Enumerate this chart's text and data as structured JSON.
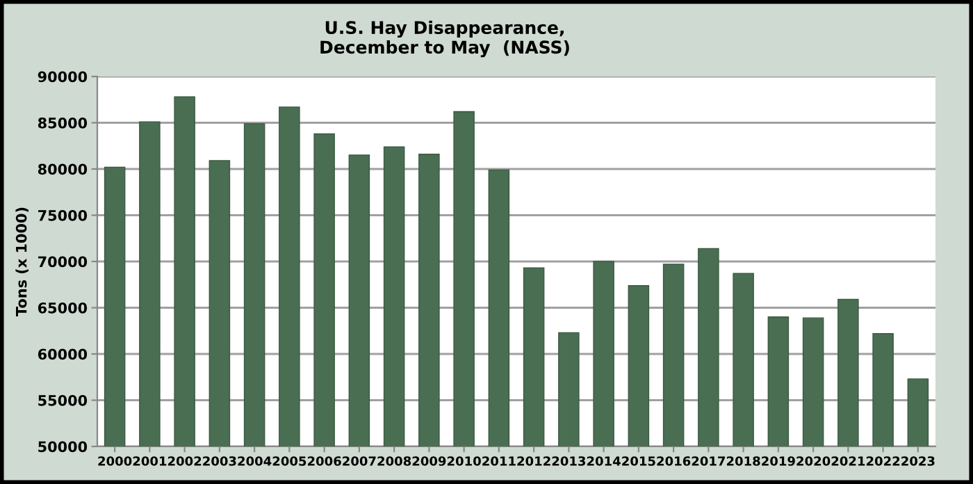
{
  "chart_data": {
    "type": "bar",
    "title": "U.S. Hay Disappearance,\nDecember to May  (NASS)",
    "ylabel": "Tons (x 1000)",
    "categories": [
      "2000",
      "2001",
      "2002",
      "2003",
      "2004",
      "2005",
      "2006",
      "2007",
      "2008",
      "2009",
      "2010",
      "2011",
      "2012",
      "2013",
      "2014",
      "2015",
      "2016",
      "2017",
      "2018",
      "2019",
      "2020",
      "2021",
      "2022",
      "2023"
    ],
    "values": [
      80200,
      85100,
      87800,
      80900,
      84900,
      86700,
      83800,
      81500,
      82400,
      81600,
      86200,
      79900,
      69300,
      62300,
      70000,
      67400,
      69700,
      71400,
      68700,
      64000,
      63900,
      65900,
      62200,
      57300
    ],
    "color": "#4a6e52",
    "ylim": [
      50000,
      90000
    ],
    "yticks": [
      50000,
      55000,
      60000,
      65000,
      70000,
      75000,
      80000,
      85000,
      90000
    ],
    "grid": "y",
    "legend": false
  }
}
